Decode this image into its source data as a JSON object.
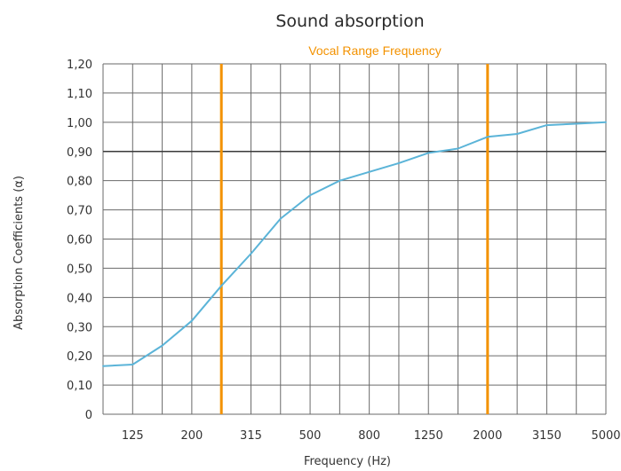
{
  "chart_data": {
    "type": "line",
    "title": "Sound absorption",
    "subtitle": "Vocal Range Frequency",
    "xlabel": "Frequency (Hz)",
    "ylabel": "Absorption Coefficients (α)",
    "x_tick_labels": [
      "125",
      "200",
      "315",
      "500",
      "800",
      "1250",
      "2000",
      "3150",
      "5000"
    ],
    "y_tick_labels": [
      "0",
      "0,10",
      "0,20",
      "0,30",
      "0,40",
      "0,50",
      "0,60",
      "0,70",
      "0,80",
      "0,90",
      "1,00",
      "1,10",
      "1,20"
    ],
    "ylim": [
      0,
      1.2
    ],
    "grid": true,
    "x_unit": "third-octave band index",
    "vocal_range_band_index": [
      4,
      13
    ],
    "series": [
      {
        "color": "#5bb4d8",
        "x": [
          0,
          1,
          2,
          3,
          4,
          5,
          6,
          7,
          8,
          9,
          10,
          11,
          12,
          13,
          14,
          15,
          16,
          17
        ],
        "y": [
          0.165,
          0.17,
          0.235,
          0.32,
          0.44,
          0.55,
          0.67,
          0.75,
          0.8,
          0.83,
          0.86,
          0.895,
          0.91,
          0.95,
          0.96,
          0.99,
          0.995,
          1.0
        ]
      }
    ],
    "colors": {
      "series": "#5bb4d8",
      "vocal_lines": "#f39200",
      "grid": "#6a6a6a",
      "major_grid": "#3a3a3a"
    }
  }
}
